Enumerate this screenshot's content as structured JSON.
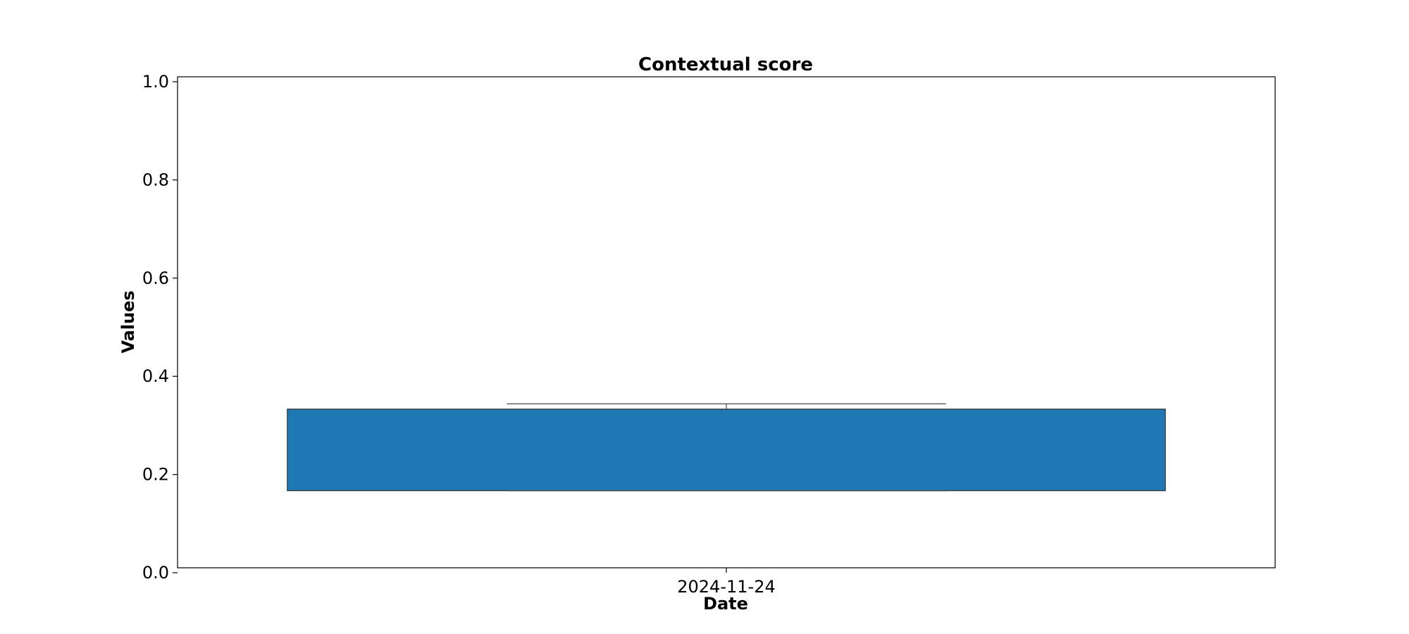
{
  "chart_data": {
    "type": "box",
    "title": "Contextual score",
    "xlabel": "Date",
    "ylabel": "Values",
    "categories": [
      "2024-11-24"
    ],
    "ylim": [
      0.0,
      1.0
    ],
    "yticks": [
      "0.0",
      "0.2",
      "0.4",
      "0.6",
      "0.8",
      "1.0"
    ],
    "grid": false,
    "boxes": [
      {
        "category": "2024-11-24",
        "whisker_low": 0.167,
        "q1": 0.167,
        "median": 0.333,
        "q3": 0.333,
        "whisker_high": 0.344,
        "color": "#1f77b4"
      }
    ]
  }
}
